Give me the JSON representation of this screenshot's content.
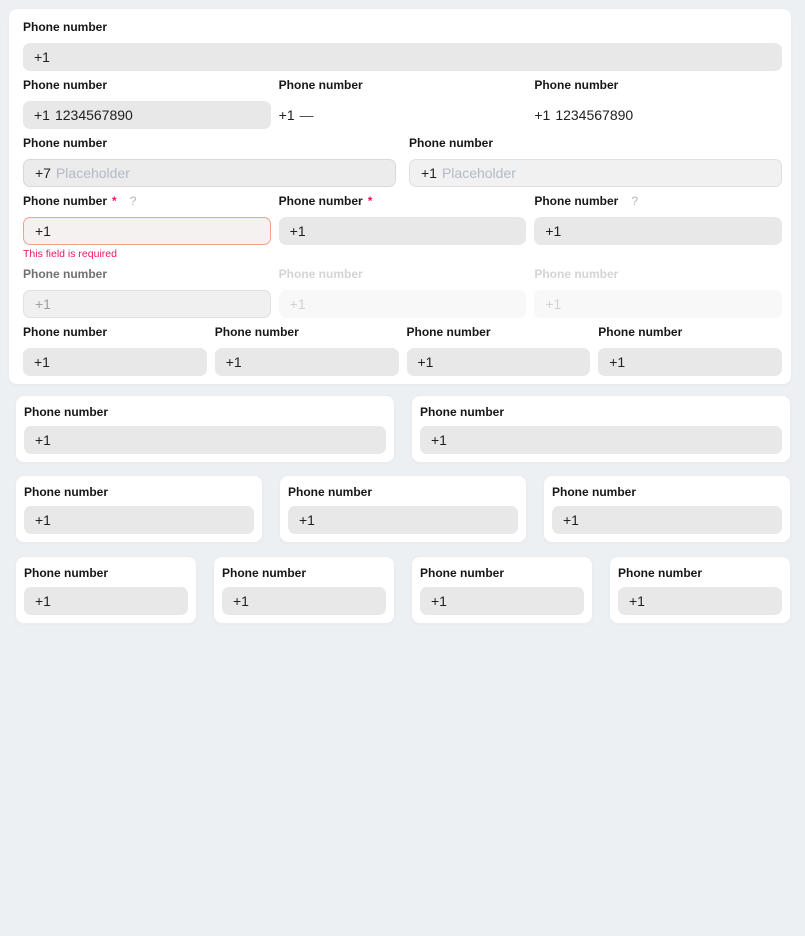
{
  "page": {
    "background": "#edf0f3",
    "card_background": "#ffffff"
  },
  "field": {
    "label": "Phone number",
    "required_mark": "*",
    "help_mark": "?"
  },
  "prefixes": {
    "us": "+1",
    "ru": "+7"
  },
  "sample": {
    "filled_value": "1234567890",
    "empty_value": "—",
    "placeholder": "Placeholder"
  },
  "error": {
    "message": "This field is required"
  },
  "colors": {
    "error_accent": "#ed155e",
    "error_border": "#f2a18f",
    "input_background": "#e8e8e8"
  }
}
